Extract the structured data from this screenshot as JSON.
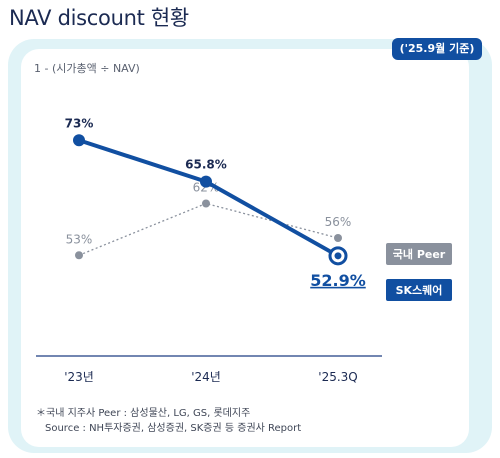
{
  "title": "NAV discount 현황",
  "badge": "('25.9월 기준)",
  "chart_data": {
    "type": "line",
    "ylabel": "1 - (시가총액 ÷ NAV)",
    "categories": [
      "'23년",
      "'24년",
      "'25.3Q"
    ],
    "ylim": [
      40,
      80
    ],
    "series": [
      {
        "name": "국내 Peer",
        "values": [
          53,
          62,
          56
        ],
        "labels": [
          "53%",
          "62%",
          "56%"
        ],
        "color": "#8a919d",
        "style": "dotted"
      },
      {
        "name": "SK스퀘어",
        "values": [
          73,
          65.8,
          52.9
        ],
        "labels": [
          "73%",
          "65.8%",
          "52.9%"
        ],
        "color": "#114fa1",
        "style": "solid"
      }
    ],
    "legend": "right"
  },
  "footnotes": {
    "line1": "＊국내 지주사 Peer : 삼성물산, LG, GS, 롯데지주",
    "line2": "Source : NH투자증권, 삼성증권, SK증권 등 증권사 Report"
  }
}
